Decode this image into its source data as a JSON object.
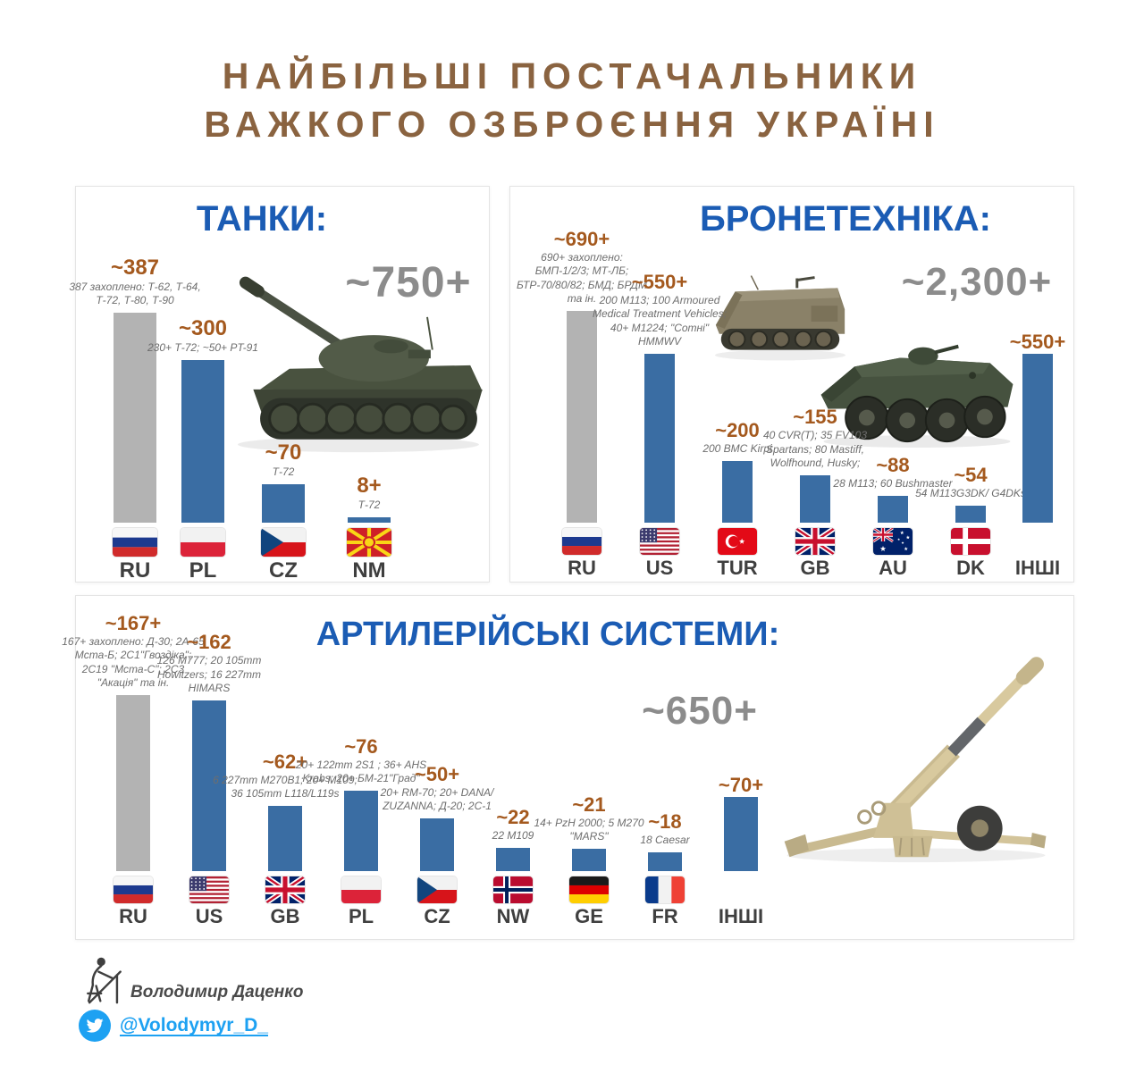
{
  "header": {
    "title_line1": "НАЙБІЛЬШІ ПОСТАЧАЛЬНИКИ",
    "title_line2": "ВАЖКОГО ОЗБРОЄННЯ УКРАЇНІ"
  },
  "footer": {
    "author": "Володимир Даценко",
    "twitter_handle": "@Volodymyr_D_"
  },
  "colors": {
    "header_brown": "#8a6340",
    "panel_title_blue": "#1b5cb4",
    "total_gray": "#8c8c8c",
    "value_brown": "#a4591e",
    "bar_blue": "#3a6da3",
    "bar_captured_gray": "#b3b3b3",
    "twitter_blue": "#1da1f2"
  },
  "chart_data": [
    {
      "type": "bar",
      "title": "ТАНКИ:",
      "total_label": "~750+",
      "legend_position": "none",
      "grid": false,
      "categories": [
        "RU",
        "PL",
        "CZ",
        "NM"
      ],
      "values": [
        387,
        300,
        70,
        8
      ],
      "bars": [
        {
          "country": "RU",
          "flag": "ru",
          "value_label": "~387",
          "value": 387,
          "captured": true,
          "note": "387 захоплено: Т-62, Т-64, Т-72, Т-80, Т-90"
        },
        {
          "country": "PL",
          "flag": "pl",
          "value_label": "~300",
          "value": 300,
          "captured": false,
          "note": "230+ Т-72; ~50+ PT-91"
        },
        {
          "country": "CZ",
          "flag": "cz",
          "value_label": "~70",
          "value": 70,
          "captured": false,
          "note": "Т-72"
        },
        {
          "country": "NM",
          "flag": "nm",
          "value_label": "8+",
          "value": 8,
          "captured": false,
          "note": "Т-72"
        }
      ]
    },
    {
      "type": "bar",
      "title": "БРОНЕТЕХНІКА:",
      "total_label": "~2,300+",
      "legend_position": "none",
      "grid": false,
      "categories": [
        "RU",
        "US",
        "TUR",
        "GB",
        "AU",
        "DK",
        "ІНШІ"
      ],
      "values": [
        690,
        550,
        200,
        155,
        88,
        54,
        550
      ],
      "bars": [
        {
          "country": "RU",
          "flag": "ru",
          "value_label": "~690+",
          "value": 690,
          "captured": true,
          "note": "690+ захоплено: БМП-1/2/3; МТ-ЛБ; БТР-70/80/82; БМД; БРДМ та ін."
        },
        {
          "country": "US",
          "flag": "us",
          "value_label": "~550+",
          "value": 550,
          "captured": false,
          "note": "200 M113; 100 Armoured Medical Treatment Vehicles; 40+ M1224; \"Сотні\" HMMWV"
        },
        {
          "country": "TUR",
          "flag": "tr",
          "value_label": "~200",
          "value": 200,
          "captured": false,
          "note": "200 BMC Kirpi"
        },
        {
          "country": "GB",
          "flag": "gb",
          "value_label": "~155",
          "value": 155,
          "captured": false,
          "note": "40 CVR(T); 35 FV103 Spartans; 80 Mastiff, Wolfhound,  Husky;"
        },
        {
          "country": "AU",
          "flag": "au",
          "value_label": "~88",
          "value": 88,
          "captured": false,
          "note": "28 M113; 60 Bushmaster"
        },
        {
          "country": "DK",
          "flag": "dk",
          "value_label": "~54",
          "value": 54,
          "captured": false,
          "note": "54 M113G3DK/ G4DKs"
        },
        {
          "country": "ІНШІ",
          "flag": null,
          "value_label": "~550+",
          "value": 550,
          "captured": false,
          "note": ""
        }
      ]
    },
    {
      "type": "bar",
      "title": "АРТИЛЕРІЙСЬКІ СИСТЕМИ:",
      "total_label": "~650+",
      "legend_position": "none",
      "grid": false,
      "categories": [
        "RU",
        "US",
        "GB",
        "PL",
        "CZ",
        "NW",
        "GE",
        "FR",
        "ІНШІ"
      ],
      "values": [
        167,
        162,
        62,
        76,
        50,
        22,
        21,
        18,
        70
      ],
      "bars": [
        {
          "country": "RU",
          "flag": "ru",
          "value_label": "~167+",
          "value": 167,
          "captured": true,
          "note": "167+ захоплено: Д-30; 2А-65 Мста-Б; 2С1\"Гвоздіка\"; 2С19 \"Мста-С\"; 2С3 \"Акація\" та ін."
        },
        {
          "country": "US",
          "flag": "us",
          "value_label": "~162",
          "value": 162,
          "captured": false,
          "note": "126 M777; 20 105mm Howitzers; 16 227mm HIMARS"
        },
        {
          "country": "GB",
          "flag": "gb",
          "value_label": "~62+",
          "value": 62,
          "captured": false,
          "note": "6 227mm M270B1; 20+ M109; 36 105mm L118/L119s"
        },
        {
          "country": "PL",
          "flag": "pl",
          "value_label": "~76",
          "value": 76,
          "captured": false,
          "note": "20+ 122mm 2S1 ; 36+ AHS Krabs; 20+ БМ-21\"Град\""
        },
        {
          "country": "CZ",
          "flag": "cz",
          "value_label": "~50+",
          "value": 50,
          "captured": false,
          "note": "20+ RM-70; 20+ DANA/ ZUZANNA; Д-20; 2С-1"
        },
        {
          "country": "NW",
          "flag": "nw",
          "value_label": "~22",
          "value": 22,
          "captured": false,
          "note": "22 М109"
        },
        {
          "country": "GE",
          "flag": "ge",
          "value_label": "~21",
          "value": 21,
          "captured": false,
          "note": "14+ PzH 2000; 5 M270 \"MARS\""
        },
        {
          "country": "FR",
          "flag": "fr",
          "value_label": "~18",
          "value": 18,
          "captured": false,
          "note": "18 Caesar"
        },
        {
          "country": "ІНШІ",
          "flag": null,
          "value_label": "~70+",
          "value": 70,
          "captured": false,
          "note": ""
        }
      ]
    }
  ]
}
